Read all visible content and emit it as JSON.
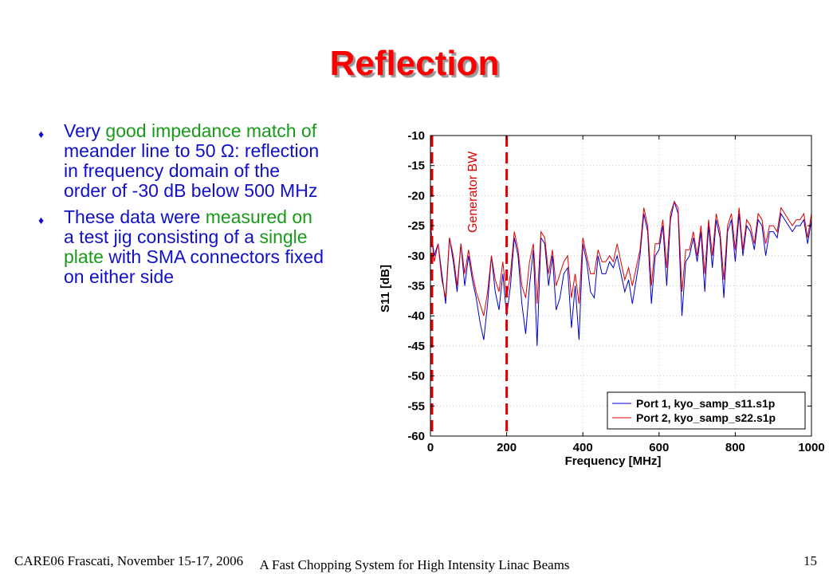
{
  "slide": {
    "title": "Reflection",
    "bullets": [
      {
        "segments": [
          {
            "text": "Very ",
            "color": "blue"
          },
          {
            "text": "good impedance match of",
            "color": "green"
          },
          {
            "text": " meander line to 50 Ω: reflection in frequency domain of the order of -30 dB below 500 MHz",
            "color": "blue"
          }
        ]
      },
      {
        "segments": [
          {
            "text": "These data were ",
            "color": "blue"
          },
          {
            "text": "measured on",
            "color": "green"
          },
          {
            "text": " a test jig consisting of a ",
            "color": "blue"
          },
          {
            "text": "single plate",
            "color": "green"
          },
          {
            "text": " with SMA connectors fixed on either side",
            "color": "blue"
          }
        ]
      }
    ],
    "footer_left": "CARE06 Frascati, November 15-17, 2006",
    "footer_center": "A Fast Chopping System for High Intensity Linac Beams",
    "footer_right": "15",
    "colors": {
      "title": "#ff0000",
      "body_text": "#1010c8",
      "highlight": "#1a9a1a"
    }
  },
  "chart_data": {
    "type": "line",
    "xlabel": "Frequency [MHz]",
    "ylabel": "S11 [dB]",
    "xlim": [
      0,
      1000
    ],
    "ylim": [
      -60,
      -10
    ],
    "xticks": [
      0,
      200,
      400,
      600,
      800,
      1000
    ],
    "yticks": [
      -10,
      -15,
      -20,
      -25,
      -30,
      -35,
      -40,
      -45,
      -50,
      -55,
      -60
    ],
    "grid": true,
    "legend_position": "bottom-right",
    "annotation": {
      "text": "Generator BW",
      "x_range": [
        0,
        200
      ],
      "color": "#e00000"
    },
    "series": [
      {
        "name": "Port 1, kyo_samp_s11.s1p",
        "color": "#0000cc",
        "x": [
          0,
          10,
          20,
          30,
          40,
          50,
          60,
          70,
          80,
          90,
          100,
          110,
          120,
          130,
          140,
          150,
          160,
          170,
          180,
          190,
          200,
          210,
          220,
          230,
          240,
          250,
          260,
          270,
          280,
          290,
          300,
          310,
          320,
          330,
          340,
          350,
          360,
          370,
          380,
          390,
          400,
          410,
          420,
          430,
          440,
          450,
          460,
          470,
          480,
          490,
          500,
          510,
          520,
          530,
          540,
          550,
          560,
          570,
          580,
          590,
          600,
          610,
          620,
          630,
          640,
          650,
          660,
          670,
          680,
          690,
          700,
          710,
          720,
          730,
          740,
          750,
          760,
          770,
          780,
          790,
          800,
          810,
          820,
          830,
          840,
          850,
          860,
          870,
          880,
          890,
          900,
          910,
          920,
          930,
          940,
          950,
          960,
          970,
          980,
          990,
          1000
        ],
        "y": [
          -25,
          -30,
          -28,
          -33,
          -38,
          -27,
          -31,
          -36,
          -28,
          -35,
          -30,
          -34,
          -37,
          -41,
          -44,
          -38,
          -30,
          -36,
          -39,
          -33,
          -40,
          -35,
          -27,
          -30,
          -38,
          -43,
          -35,
          -29,
          -45,
          -27,
          -28,
          -35,
          -30,
          -39,
          -37,
          -33,
          -32,
          -42,
          -35,
          -44,
          -28,
          -31,
          -36,
          -37,
          -30,
          -33,
          -33,
          -31,
          -32,
          -30,
          -33,
          -36,
          -34,
          -38,
          -34,
          -30,
          -23,
          -26,
          -38,
          -30,
          -29,
          -25,
          -35,
          -24,
          -21,
          -23,
          -40,
          -31,
          -30,
          -27,
          -31,
          -26,
          -36,
          -25,
          -32,
          -24,
          -27,
          -37,
          -26,
          -24,
          -31,
          -23,
          -30,
          -25,
          -26,
          -29,
          -24,
          -25,
          -30,
          -26,
          -26,
          -27,
          -23,
          -24,
          -25,
          -26,
          -25,
          -25,
          -24,
          -28,
          -24
        ]
      },
      {
        "name": "Port 2, kyo_samp_s22.s1p",
        "color": "#dd0000",
        "x": [
          0,
          10,
          20,
          30,
          40,
          50,
          60,
          70,
          80,
          90,
          100,
          110,
          120,
          130,
          140,
          150,
          160,
          170,
          180,
          190,
          200,
          210,
          220,
          230,
          240,
          250,
          260,
          270,
          280,
          290,
          300,
          310,
          320,
          330,
          340,
          350,
          360,
          370,
          380,
          390,
          400,
          410,
          420,
          430,
          440,
          450,
          460,
          470,
          480,
          490,
          500,
          510,
          520,
          530,
          540,
          550,
          560,
          570,
          580,
          590,
          600,
          610,
          620,
          630,
          640,
          650,
          660,
          670,
          680,
          690,
          700,
          710,
          720,
          730,
          740,
          750,
          760,
          770,
          780,
          790,
          800,
          810,
          820,
          830,
          840,
          850,
          860,
          870,
          880,
          890,
          900,
          910,
          920,
          930,
          940,
          950,
          960,
          970,
          980,
          990,
          1000
        ],
        "y": [
          -25,
          -31,
          -28,
          -34,
          -37,
          -27,
          -30,
          -35,
          -28,
          -33,
          -29,
          -33,
          -36,
          -38,
          -40,
          -36,
          -30,
          -34,
          -36,
          -31,
          -37,
          -33,
          -26,
          -29,
          -35,
          -37,
          -31,
          -28,
          -38,
          -26,
          -27,
          -33,
          -29,
          -35,
          -33,
          -31,
          -30,
          -37,
          -33,
          -38,
          -27,
          -30,
          -33,
          -33,
          -29,
          -31,
          -31,
          -30,
          -31,
          -28,
          -31,
          -34,
          -32,
          -35,
          -32,
          -29,
          -22,
          -25,
          -35,
          -28,
          -28,
          -24,
          -32,
          -23,
          -21,
          -22,
          -36,
          -29,
          -29,
          -26,
          -30,
          -25,
          -33,
          -24,
          -30,
          -23,
          -26,
          -34,
          -25,
          -23,
          -29,
          -22,
          -29,
          -24,
          -25,
          -28,
          -23,
          -24,
          -28,
          -25,
          -25,
          -26,
          -22,
          -23,
          -24,
          -25,
          -24,
          -24,
          -23,
          -27,
          -23
        ]
      }
    ]
  }
}
